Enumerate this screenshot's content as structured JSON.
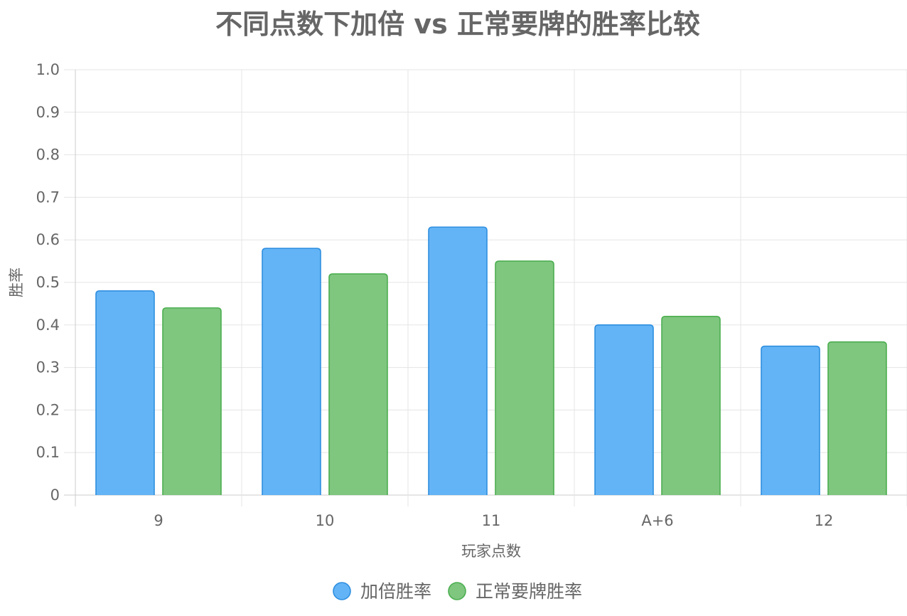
{
  "chart_data": {
    "type": "bar",
    "title": "不同点数下加倍 vs 正常要牌的胜率比较",
    "xlabel": "玩家点数",
    "ylabel": "胜率",
    "categories": [
      "9",
      "10",
      "11",
      "A+6",
      "12"
    ],
    "series": [
      {
        "name": "加倍胜率",
        "values": [
          0.48,
          0.58,
          0.63,
          0.4,
          0.35
        ],
        "fill": "#63b4f6",
        "stroke": "#2f8fe0"
      },
      {
        "name": "正常要牌胜率",
        "values": [
          0.44,
          0.52,
          0.55,
          0.42,
          0.36
        ],
        "fill": "#7fc67f",
        "stroke": "#4caf50"
      }
    ],
    "ylim": [
      0,
      1.0
    ],
    "yticks": [
      "0",
      "0.1",
      "0.2",
      "0.3",
      "0.4",
      "0.5",
      "0.6",
      "0.7",
      "0.8",
      "0.9",
      "1.0"
    ],
    "grid": true,
    "legend_position": "bottom-center",
    "colors": {
      "text": "#666666",
      "grid": "#e5e5e5",
      "axis": "#cccccc"
    }
  }
}
